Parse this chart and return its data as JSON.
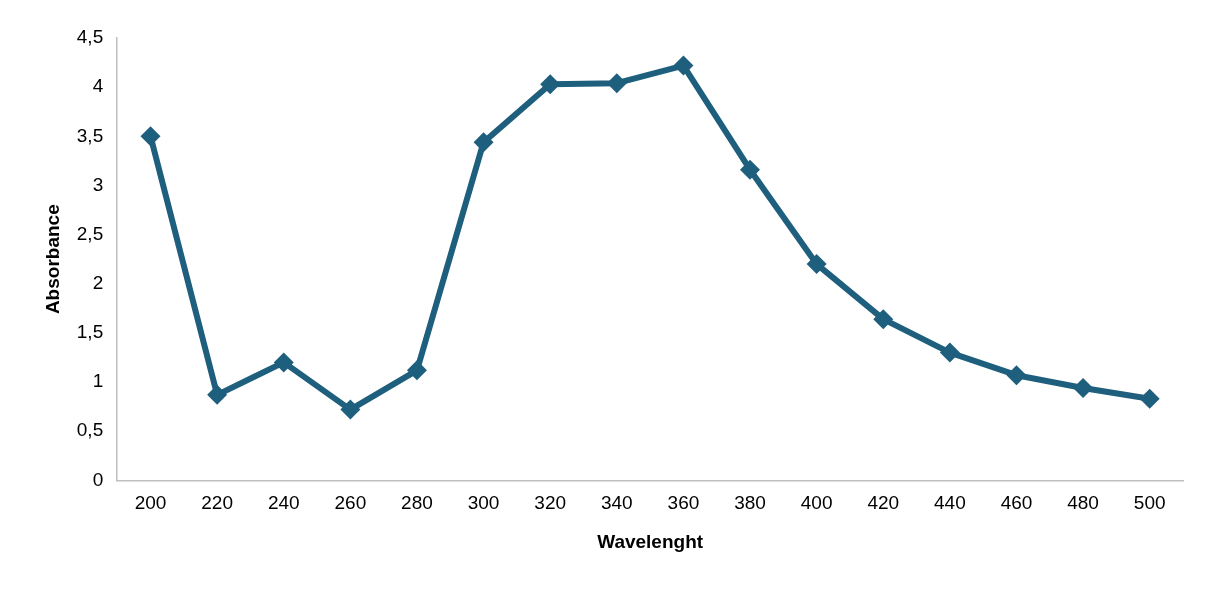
{
  "chart_data": {
    "type": "line",
    "xlabel": "Wavelenght",
    "ylabel": "Absorbance",
    "categories": [
      "200",
      "220",
      "240",
      "260",
      "280",
      "300",
      "320",
      "340",
      "360",
      "380",
      "400",
      "420",
      "440",
      "460",
      "480",
      "500"
    ],
    "series": [
      {
        "color": "#1f5f7e",
        "values": [
          3.5,
          0.87,
          1.2,
          0.72,
          1.12,
          3.44,
          4.03,
          4.04,
          4.22,
          3.16,
          2.2,
          1.64,
          1.3,
          1.07,
          0.94,
          0.83
        ]
      }
    ],
    "ylim": [
      0,
      4.5
    ],
    "yticks": [
      0,
      {
        "value": 0.5,
        "label": "0,5"
      },
      1,
      {
        "value": 1.5,
        "label": "1,5"
      },
      2,
      {
        "value": 2.5,
        "label": "2,5"
      },
      3,
      {
        "value": 3.5,
        "label": "3,5"
      },
      4,
      {
        "value": 4.5,
        "label": "4,5"
      }
    ],
    "grid": false,
    "legend": false,
    "marker": "diamond",
    "line_style": "solid"
  }
}
